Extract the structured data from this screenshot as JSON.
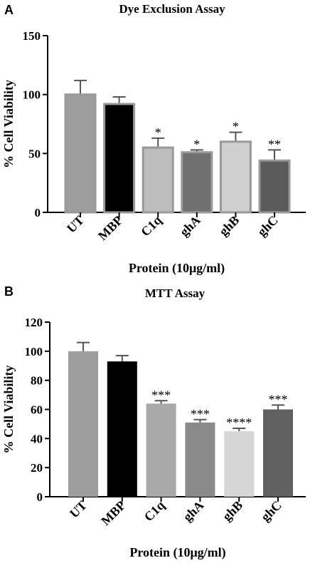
{
  "chart_data": [
    {
      "panel": "A",
      "type": "bar",
      "title": "Dye Exclusion Assay",
      "xlabel": "Protein (10μg/ml)",
      "ylabel": "% Cell Viability",
      "ylim": [
        0,
        150
      ],
      "yticks": [
        0,
        50,
        100,
        150
      ],
      "categories": [
        "UT",
        "MBP",
        "C1q",
        "ghA",
        "ghB",
        "ghC"
      ],
      "values": [
        100,
        92,
        55,
        51,
        60,
        44
      ],
      "errors": [
        12,
        6,
        8,
        2,
        8,
        9
      ],
      "significance": [
        "",
        "",
        "*",
        "*",
        "*",
        "**"
      ],
      "colors": [
        "#9e9e9e",
        "#000000",
        "#bdbdbd",
        "#707070",
        "#cfcfcf",
        "#5a5a5a"
      ],
      "bordered": true
    },
    {
      "panel": "B",
      "type": "bar",
      "title": "MTT Assay",
      "xlabel": "Protein (10μg/ml)",
      "ylabel": "% Cell Viability",
      "ylim": [
        0,
        120
      ],
      "yticks": [
        0,
        20,
        40,
        60,
        80,
        100,
        120
      ],
      "categories": [
        "UT",
        "MBP",
        "C1q",
        "ghA",
        "ghB",
        "ghC"
      ],
      "values": [
        100,
        93,
        64,
        51,
        45,
        60
      ],
      "errors": [
        6,
        4,
        2,
        2,
        2,
        3
      ],
      "significance": [
        "",
        "",
        "***",
        "***",
        "****",
        "***"
      ],
      "colors": [
        "#9e9e9e",
        "#000000",
        "#a8a8a8",
        "#8a8a8a",
        "#d6d6d6",
        "#5f5f5f"
      ],
      "bordered": false
    }
  ]
}
